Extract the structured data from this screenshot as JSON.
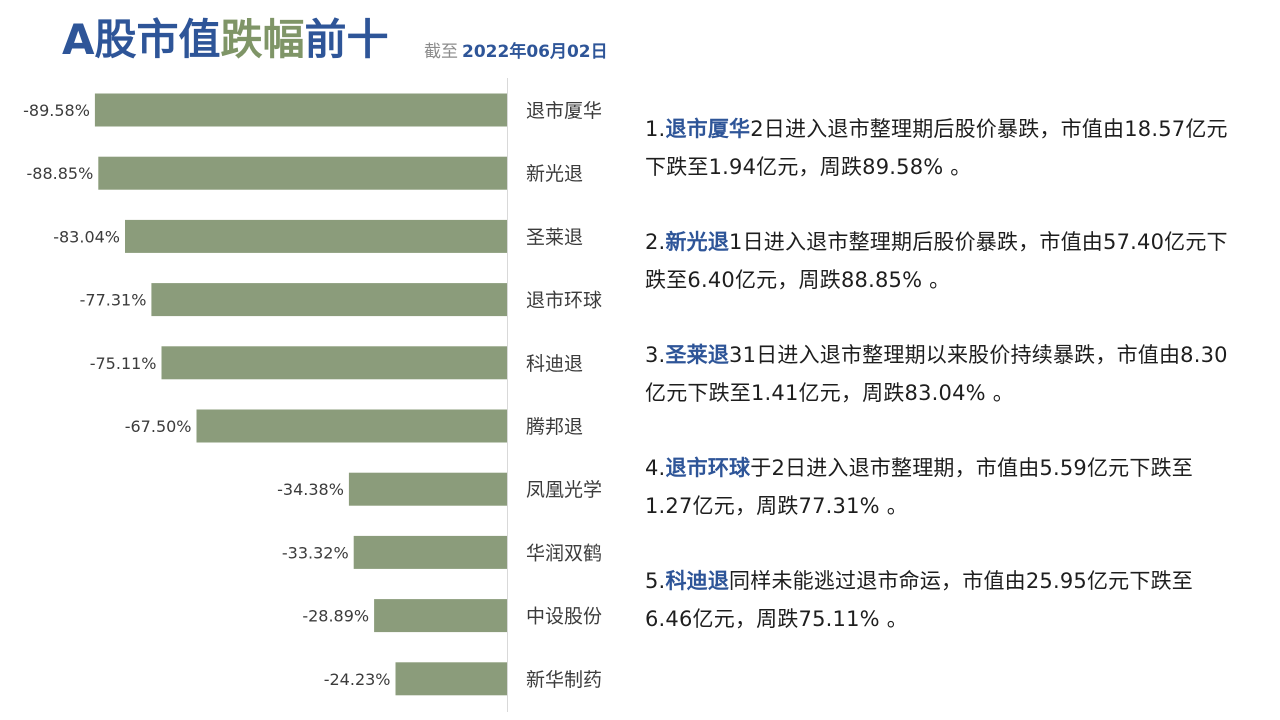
{
  "header": {
    "title_part1": "A股市值",
    "title_part2": "跌幅",
    "title_part3": "前十",
    "date_label": "截至",
    "date_value": "2022年06月02日"
  },
  "colors": {
    "bar": "#8b9c7b",
    "title_blue": "#2e5598",
    "title_green": "#7f9567",
    "axis": "#d9d9d9"
  },
  "chart_data": {
    "type": "bar",
    "orientation": "horizontal",
    "categories": [
      "退市厦华",
      "新光退",
      "圣莱退",
      "退市环球",
      "科迪退",
      "腾邦退",
      "凤凰光学",
      "华润双鹤",
      "中设股份",
      "新华制药"
    ],
    "values": [
      -89.58,
      -88.85,
      -83.04,
      -77.31,
      -75.11,
      -67.5,
      -34.38,
      -33.32,
      -28.89,
      -24.23
    ],
    "value_labels": [
      "-89.58%",
      "-88.85%",
      "-83.04%",
      "-77.31%",
      "-75.11%",
      "-67.50%",
      "-34.38%",
      "-33.32%",
      "-28.89%",
      "-24.23%"
    ],
    "unit": "%",
    "xlim": [
      -100,
      0
    ],
    "title": "A股市值跌幅前十",
    "subtitle": "截至 2022年06月02日",
    "xlabel": "",
    "ylabel": "",
    "grid": false,
    "legend": "none"
  },
  "notes": [
    {
      "prefix": "1.",
      "name": "退市厦华",
      "text": "2日进入退市整理期后股价暴跌，市值由18.57亿元下跌至1.94亿元，周跌89.58% 。"
    },
    {
      "prefix": "2.",
      "name": "新光退",
      "text": "1日进入退市整理期后股价暴跌，市值由57.40亿元下跌至6.40亿元，周跌88.85% 。"
    },
    {
      "prefix": "3.",
      "name": "圣莱退",
      "text": "31日进入退市整理期以来股价持续暴跌，市值由8.30亿元下跌至1.41亿元，周跌83.04% 。"
    },
    {
      "prefix": "4.",
      "name": "退市环球",
      "text": "于2日进入退市整理期，市值由5.59亿元下跌至1.27亿元，周跌77.31% 。"
    },
    {
      "prefix": "5.",
      "name": "科迪退",
      "text": "同样未能逃过退市命运，市值由25.95亿元下跌至6.46亿元，周跌75.11% 。"
    }
  ]
}
